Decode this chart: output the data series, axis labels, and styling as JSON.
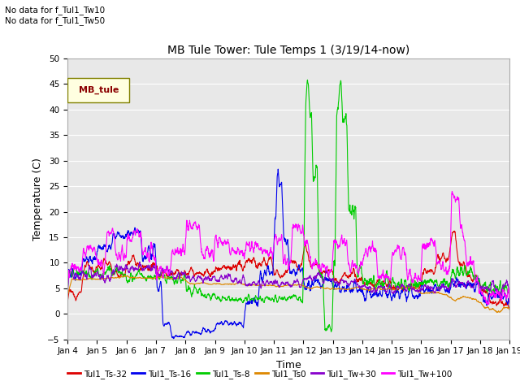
{
  "title": "MB Tule Tower: Tule Temps 1 (3/19/14-now)",
  "no_data_labels": [
    "No data for f_Tul1_Tw10",
    "No data for f_Tul1_Tw50"
  ],
  "legend_box_label": "MB_tule",
  "xlabel": "Time",
  "ylabel": "Temperature (C)",
  "ylim": [
    -5,
    50
  ],
  "yticks": [
    -5,
    0,
    5,
    10,
    15,
    20,
    25,
    30,
    35,
    40,
    45,
    50
  ],
  "bg_color": "#e8e8e8",
  "grid_color": "#ffffff",
  "series_colors": {
    "Tul1_Ts-32": "#dd0000",
    "Tul1_Ts-16": "#0000ee",
    "Tul1_Ts-8": "#00cc00",
    "Tul1_Ts0": "#dd8800",
    "Tul1_Tw+30": "#8800cc",
    "Tul1_Tw+100": "#ff00ff"
  }
}
